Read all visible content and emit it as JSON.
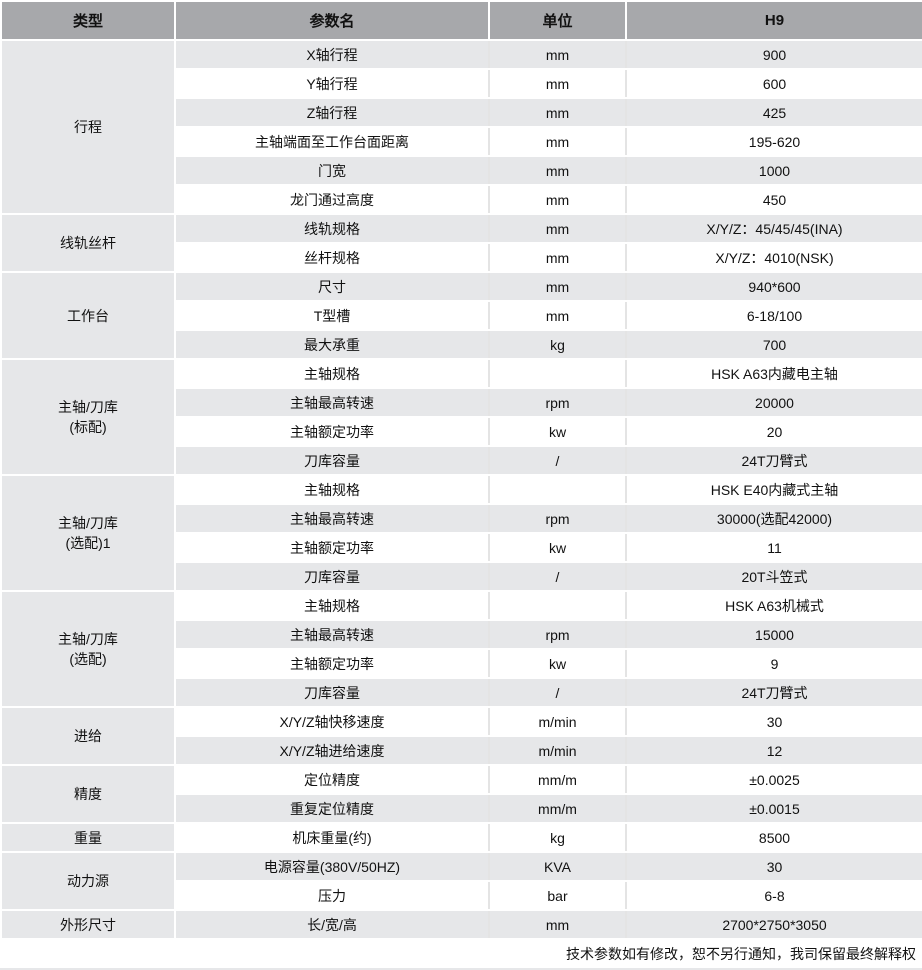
{
  "headers": [
    "类型",
    "参数名",
    "单位",
    "H9"
  ],
  "groups": [
    {
      "category": "行程",
      "rows": [
        [
          "X轴行程",
          "mm",
          "900"
        ],
        [
          "Y轴行程",
          "mm",
          "600"
        ],
        [
          "Z轴行程",
          "mm",
          "425"
        ],
        [
          "主轴端面至工作台面距离",
          "mm",
          "195-620"
        ],
        [
          "门宽",
          "mm",
          "1000"
        ],
        [
          "龙门通过高度",
          "mm",
          "450"
        ]
      ]
    },
    {
      "category": "线轨丝杆",
      "rows": [
        [
          "线轨规格",
          "mm",
          "X/Y/Z：45/45/45(INA)"
        ],
        [
          "丝杆规格",
          "mm",
          "X/Y/Z：4010(NSK)"
        ]
      ]
    },
    {
      "category": "工作台",
      "rows": [
        [
          "尺寸",
          "mm",
          "940*600"
        ],
        [
          "T型槽",
          "mm",
          "6-18/100"
        ],
        [
          "最大承重",
          "kg",
          "700"
        ]
      ]
    },
    {
      "category": "主轴/刀库\n(标配)",
      "rows": [
        [
          "主轴规格",
          "",
          "HSK A63内藏电主轴"
        ],
        [
          "主轴最高转速",
          "rpm",
          "20000"
        ],
        [
          "主轴额定功率",
          "kw",
          "20"
        ],
        [
          "刀库容量",
          "/",
          "24T刀臂式"
        ]
      ]
    },
    {
      "category": "主轴/刀库\n(选配)1",
      "rows": [
        [
          "主轴规格",
          "",
          "HSK E40内藏式主轴"
        ],
        [
          "主轴最高转速",
          "rpm",
          "30000(选配42000)"
        ],
        [
          "主轴额定功率",
          "kw",
          "11"
        ],
        [
          "刀库容量",
          "/",
          "20T斗笠式"
        ]
      ]
    },
    {
      "category": "主轴/刀库\n(选配)",
      "rows": [
        [
          "主轴规格",
          "",
          "HSK A63机械式"
        ],
        [
          "主轴最高转速",
          "rpm",
          "15000"
        ],
        [
          "主轴额定功率",
          "kw",
          "9"
        ],
        [
          "刀库容量",
          "/",
          "24T刀臂式"
        ]
      ]
    },
    {
      "category": "进给",
      "rows": [
        [
          "X/Y/Z轴快移速度",
          "m/min",
          "30"
        ],
        [
          "X/Y/Z轴进给速度",
          "m/min",
          "12"
        ]
      ]
    },
    {
      "category": "精度",
      "rows": [
        [
          "定位精度",
          "mm/m",
          "±0.0025"
        ],
        [
          "重复定位精度",
          "mm/m",
          "±0.0015"
        ]
      ]
    },
    {
      "category": "重量",
      "rows": [
        [
          "机床重量(约)",
          "kg",
          "8500"
        ]
      ]
    },
    {
      "category": "动力源",
      "rows": [
        [
          "电源容量(380V/50HZ)",
          "KVA",
          "30"
        ],
        [
          "压力",
          "bar",
          "6-8"
        ]
      ]
    },
    {
      "category": "外形尺寸",
      "rows": [
        [
          "长/宽/高",
          "mm",
          "2700*2750*3050"
        ]
      ]
    }
  ],
  "footer": "技术参数如有修改，恕不另行通知，我司保留最终解释权"
}
